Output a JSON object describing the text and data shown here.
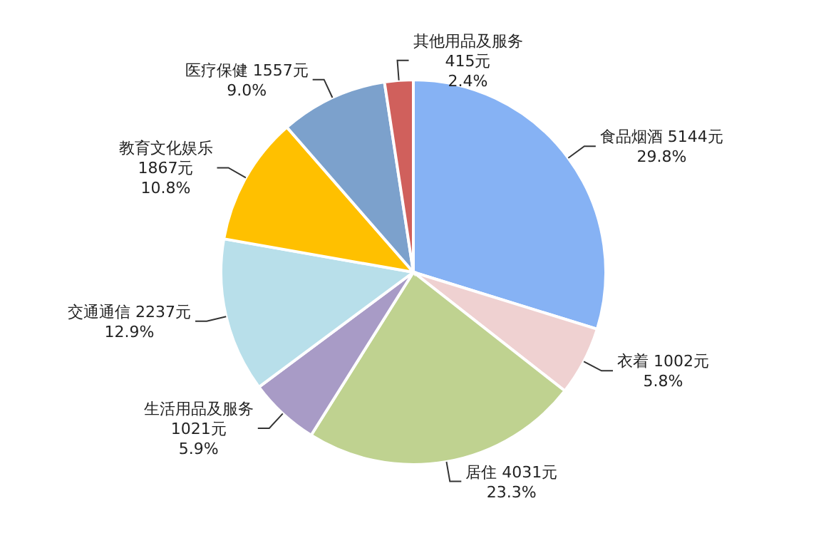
{
  "chart_data": {
    "type": "pie",
    "categories": [
      "食品烟酒",
      "衣着",
      "居住",
      "生活用品及服务",
      "交通通信",
      "教育文化娱乐",
      "医疗保健",
      "其他用品及服务"
    ],
    "values": [
      5144,
      1002,
      4031,
      1021,
      2237,
      1867,
      1557,
      415
    ],
    "value_labels": [
      "5144元\n29.8%",
      "1002元\n5.8%",
      "4031元\n23.3%",
      "1021元\n5.9%",
      "2237元\n12.9%",
      "1867元\n10.8%",
      "1557元\n9.0%",
      "415元\n2.4%"
    ],
    "colors": [
      "#86b2f4",
      "#efd1d1",
      "#bfd290",
      "#a89bc6",
      "#b8dfea",
      "#ffc000",
      "#7ca1cc",
      "#d0605c"
    ]
  }
}
